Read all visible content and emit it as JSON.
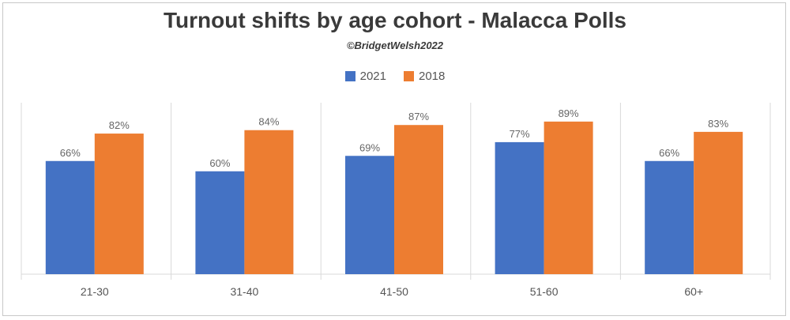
{
  "chart_data": {
    "type": "bar",
    "title": "Turnout shifts by age cohort - Malacca Polls",
    "subtitle": "©BridgetWelsh2022",
    "categories": [
      "21-30",
      "31-40",
      "41-50",
      "51-60",
      "60+"
    ],
    "series": [
      {
        "name": "2021",
        "color": "#4472c4",
        "values": [
          66,
          60,
          69,
          77,
          66
        ],
        "labels": [
          "66%",
          "60%",
          "69%",
          "77%",
          "66%"
        ]
      },
      {
        "name": "2018",
        "color": "#ed7d31",
        "values": [
          82,
          84,
          87,
          89,
          83
        ],
        "labels": [
          "82%",
          "84%",
          "87%",
          "89%",
          "83%"
        ]
      }
    ],
    "ylim": [
      0,
      100
    ],
    "grid": false,
    "legend_position": "top"
  }
}
